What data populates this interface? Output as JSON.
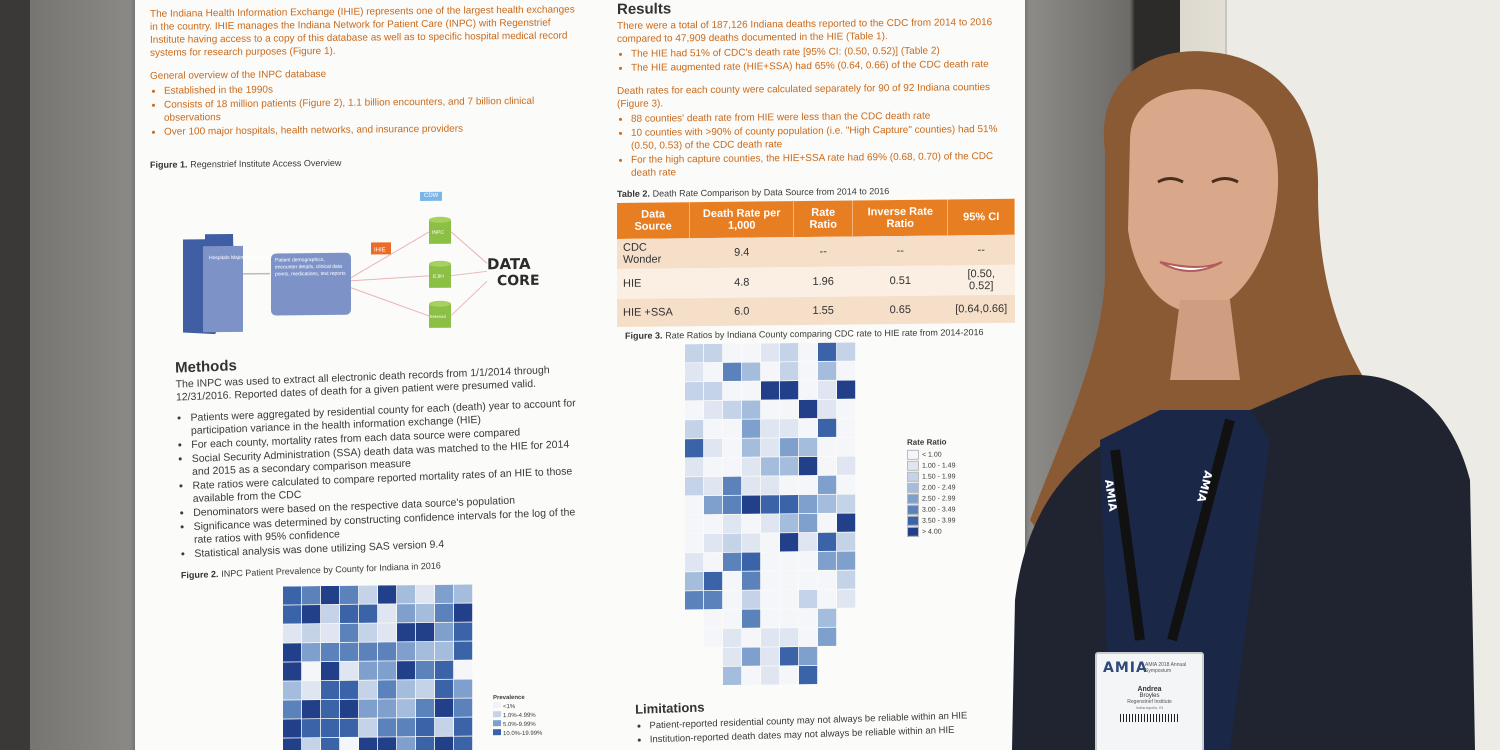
{
  "poster": {
    "intro": "The Indiana Health Information Exchange (IHIE) represents one of the largest health exchanges in the country. IHIE manages the Indiana Network for Patient Care (INPC) with Regenstrief Institute having access to a copy of this database as well as to specific hospital medical record systems for research purposes (Figure 1).",
    "overview_title": "General overview of the INPC database",
    "overview_items": [
      "Established in the 1990s",
      "Consists of 18 million patients (Figure 2), 1.1 billion encounters, and 7 billion clinical observations",
      "Over 100 major hospitals, health networks, and insurance providers"
    ],
    "fig1_caption_label": "Figure 1.",
    "fig1_caption": "Regenstrief Institute Access Overview",
    "fig1": {
      "box_left": "Hospitals Major health networks Insurance providers",
      "box_mid": "Patient demographics, encounter details, clinical data points, medications, text reports",
      "tag_ihie": "IHIE",
      "tag_cdw": "CDW",
      "db1": "INPC",
      "db2": "EJIH",
      "db3": "Eskenazi",
      "logo_line1": "DATA",
      "logo_line2": "CORE"
    },
    "methods_title": "Methods",
    "methods_text": "The INPC was used to extract all electronic death records from 1/1/2014 through 12/31/2016. Reported dates of death for a given patient were presumed valid.",
    "methods_items": [
      "Patients were aggregated by residential county for each (death) year to account for participation variance in the health information exchange (HIE)",
      "For each county, mortality rates from each data source were compared",
      "Social Security Administration (SSA) death data was matched to the HIE for 2014 and 2015 as a secondary comparison measure",
      "Rate ratios were calculated to compare reported mortality rates of an HIE to those available from the CDC",
      "Denominators were based on the respective data source's population",
      "Significance was determined by constructing confidence intervals for the log of the rate ratios with 95% confidence",
      "Statistical analysis was done utilizing SAS version 9.4"
    ],
    "fig2_caption_label": "Figure 2.",
    "fig2_caption": "INPC Patient Prevalence by County for Indiana in 2016",
    "fig2_legend_title": "Prevalence",
    "fig2_legend": [
      "<1%",
      "1.0%-4.99%",
      "5.0%-9.99%",
      "10.0%-19.99%"
    ],
    "results_title": "Results",
    "results_text": "There were a total of 187,126 Indiana deaths reported to the CDC from 2014 to 2016 compared to 47,909 deaths documented in the HIE (Table 1).",
    "results_items": [
      "The HIE had 51% of CDC's death rate [95% CI: (0.50, 0.52)] (Table 2)",
      "The HIE augmented rate (HIE+SSA) had 65% (0.64, 0.66) of the CDC death rate"
    ],
    "results_text2": "Death rates for each county were calculated separately for 90 of 92 Indiana counties (Figure 3).",
    "results_items2": [
      "88 counties' death rate from HIE were less than the CDC death rate",
      "10 counties with >90% of county population (i.e. \"High Capture\" counties) had 51% (0.50, 0.53) of the CDC death rate",
      "For the high capture counties, the HIE+SSA rate had 69% (0.68, 0.70) of the CDC death rate"
    ],
    "table2_caption_label": "Table 2.",
    "table2_caption": "Death Rate Comparison by Data Source from 2014 to 2016",
    "table2_headers": [
      "Data Source",
      "Death Rate per 1,000",
      "Rate Ratio",
      "Inverse Rate Ratio",
      "95% CI"
    ],
    "table2_rows": [
      [
        "CDC Wonder",
        "9.4",
        "--",
        "--",
        "--"
      ],
      [
        "HIE",
        "4.8",
        "1.96",
        "0.51",
        "[0.50, 0.52]"
      ],
      [
        "HIE +SSA",
        "6.0",
        "1.55",
        "0.65",
        "[0.64,0.66]"
      ]
    ],
    "fig3_caption_label": "Figure 3.",
    "fig3_caption": "Rate Ratios by Indiana County comparing CDC rate to HIE rate from 2014-2016",
    "fig3_legend_title": "Rate Ratio",
    "fig3_legend": [
      "< 1.00",
      "1.00 - 1.49",
      "1.50 - 1.99",
      "2.00 - 2.49",
      "2.50 - 2.99",
      "3.00 - 3.49",
      "3.50 - 3.99",
      "> 4.00"
    ],
    "limitations_title": "Limitations",
    "limitations_items": [
      "Patient-reported residential county may not always be reliable within an HIE",
      "Institution-reported death dates may not always be reliable within an HIE"
    ]
  },
  "badge": {
    "org": "AMIA",
    "event": "AMIA 2018 Annual Symposium",
    "first_name": "Andrea",
    "last_name": "Broyles",
    "affiliation": "Regenstrief Institute",
    "location": "Indianapolis, IN"
  },
  "lanyard_text": "AMIA",
  "colors": {
    "table_header": "#e87e22",
    "map_scale": [
      "#f4f6fa",
      "#dfe6f1",
      "#c4d3e8",
      "#a4bddc",
      "#7f9fcc",
      "#5b82bb",
      "#3b63a8",
      "#223f8a"
    ]
  }
}
